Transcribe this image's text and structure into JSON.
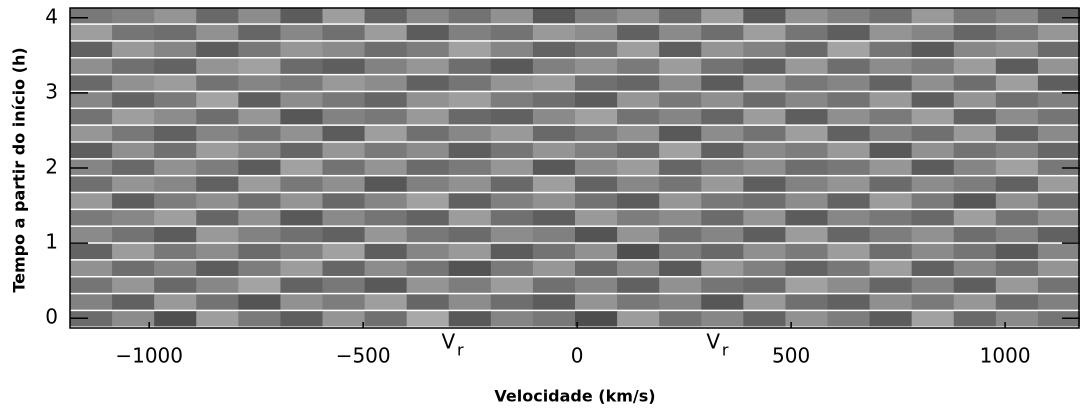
{
  "chart_data": {
    "type": "heatmap",
    "colormap": "gray",
    "xlabel": "Velocidade (km/s)",
    "ylabel": "Tempo a partir do início (h)",
    "xlim": [
      -1185,
      1175
    ],
    "ylim": [
      -0.13,
      4.13
    ],
    "xticks": [
      {
        "value": -1000,
        "label": "−1000"
      },
      {
        "value": -500,
        "label": "−500"
      },
      0,
      500,
      1000
    ],
    "yticks": [
      0,
      1,
      2,
      3,
      4
    ],
    "annotations": [
      {
        "text": "V",
        "sub": "r",
        "x": -287
      },
      {
        "text": "V",
        "sub": "r",
        "x": 332
      }
    ],
    "z": [
      [
        0.42,
        0.55,
        0.31,
        0.62,
        0.48,
        0.37,
        0.58,
        0.44,
        0.66,
        0.35,
        0.52,
        0.47,
        0.3,
        0.61,
        0.45,
        0.53,
        0.39,
        0.57,
        0.49,
        0.36,
        0.63,
        0.41,
        0.54,
        0.46
      ],
      [
        0.51,
        0.38,
        0.6,
        0.45,
        0.33,
        0.57,
        0.49,
        0.62,
        0.4,
        0.55,
        0.43,
        0.36,
        0.58,
        0.47,
        0.52,
        0.34,
        0.6,
        0.44,
        0.38,
        0.56,
        0.48,
        0.59,
        0.42,
        0.5
      ],
      [
        0.46,
        0.59,
        0.41,
        0.53,
        0.64,
        0.39,
        0.47,
        0.35,
        0.58,
        0.49,
        0.61,
        0.44,
        0.52,
        0.38,
        0.57,
        0.46,
        0.42,
        0.63,
        0.55,
        0.4,
        0.51,
        0.37,
        0.6,
        0.45
      ],
      [
        0.57,
        0.43,
        0.52,
        0.36,
        0.49,
        0.61,
        0.4,
        0.55,
        0.46,
        0.33,
        0.48,
        0.59,
        0.41,
        0.54,
        0.35,
        0.6,
        0.5,
        0.39,
        0.47,
        0.62,
        0.38,
        0.53,
        0.44,
        0.58
      ],
      [
        0.39,
        0.61,
        0.47,
        0.55,
        0.42,
        0.5,
        0.63,
        0.37,
        0.52,
        0.6,
        0.36,
        0.45,
        0.57,
        0.31,
        0.49,
        0.41,
        0.56,
        0.48,
        0.61,
        0.43,
        0.54,
        0.46,
        0.35,
        0.52
      ],
      [
        0.54,
        0.45,
        0.36,
        0.6,
        0.51,
        0.44,
        0.38,
        0.59,
        0.47,
        0.42,
        0.55,
        0.5,
        0.33,
        0.58,
        0.44,
        0.52,
        0.37,
        0.61,
        0.4,
        0.49,
        0.57,
        0.43,
        0.51,
        0.38
      ],
      [
        0.48,
        0.53,
        0.62,
        0.4,
        0.57,
        0.35,
        0.54,
        0.46,
        0.39,
        0.61,
        0.44,
        0.37,
        0.6,
        0.49,
        0.55,
        0.42,
        0.58,
        0.36,
        0.53,
        0.47,
        0.41,
        0.62,
        0.45,
        0.56
      ],
      [
        0.6,
        0.37,
        0.49,
        0.56,
        0.44,
        0.58,
        0.41,
        0.52,
        0.63,
        0.38,
        0.5,
        0.57,
        0.45,
        0.36,
        0.59,
        0.47,
        0.43,
        0.55,
        0.39,
        0.61,
        0.48,
        0.34,
        0.57,
        0.43
      ],
      [
        0.44,
        0.58,
        0.53,
        0.38,
        0.61,
        0.47,
        0.56,
        0.34,
        0.5,
        0.57,
        0.41,
        0.62,
        0.39,
        0.53,
        0.46,
        0.6,
        0.37,
        0.51,
        0.58,
        0.42,
        0.55,
        0.49,
        0.38,
        0.61
      ],
      [
        0.52,
        0.41,
        0.57,
        0.49,
        0.36,
        0.63,
        0.45,
        0.58,
        0.42,
        0.48,
        0.59,
        0.35,
        0.54,
        0.61,
        0.4,
        0.5,
        0.56,
        0.43,
        0.47,
        0.59,
        0.36,
        0.52,
        0.63,
        0.47
      ],
      [
        0.37,
        0.56,
        0.44,
        0.61,
        0.53,
        0.4,
        0.59,
        0.48,
        0.55,
        0.37,
        0.46,
        0.58,
        0.5,
        0.42,
        0.63,
        0.38,
        0.54,
        0.49,
        0.6,
        0.35,
        0.57,
        0.45,
        0.51,
        0.4
      ],
      [
        0.59,
        0.47,
        0.38,
        0.52,
        0.46,
        0.57,
        0.36,
        0.62,
        0.44,
        0.53,
        0.6,
        0.41,
        0.48,
        0.57,
        0.35,
        0.55,
        0.45,
        0.62,
        0.38,
        0.51,
        0.44,
        0.6,
        0.39,
        0.54
      ],
      [
        0.45,
        0.62,
        0.55,
        0.43,
        0.59,
        0.34,
        0.51,
        0.47,
        0.6,
        0.41,
        0.38,
        0.54,
        0.63,
        0.45,
        0.52,
        0.4,
        0.61,
        0.37,
        0.56,
        0.48,
        0.62,
        0.39,
        0.55,
        0.46
      ],
      [
        0.53,
        0.39,
        0.48,
        0.64,
        0.37,
        0.55,
        0.47,
        0.4,
        0.57,
        0.62,
        0.49,
        0.43,
        0.36,
        0.59,
        0.47,
        0.56,
        0.42,
        0.53,
        0.45,
        0.6,
        0.37,
        0.58,
        0.44,
        0.5
      ],
      [
        0.41,
        0.57,
        0.61,
        0.45,
        0.52,
        0.48,
        0.6,
        0.55,
        0.38,
        0.46,
        0.58,
        0.61,
        0.44,
        0.4,
        0.55,
        0.36,
        0.59,
        0.47,
        0.52,
        0.39,
        0.56,
        0.43,
        0.62,
        0.37
      ],
      [
        0.56,
        0.44,
        0.39,
        0.58,
        0.63,
        0.42,
        0.37,
        0.51,
        0.59,
        0.43,
        0.35,
        0.5,
        0.57,
        0.48,
        0.61,
        0.45,
        0.38,
        0.6,
        0.43,
        0.55,
        0.49,
        0.61,
        0.36,
        0.58
      ],
      [
        0.38,
        0.6,
        0.52,
        0.36,
        0.47,
        0.59,
        0.54,
        0.43,
        0.49,
        0.63,
        0.52,
        0.39,
        0.46,
        0.62,
        0.37,
        0.58,
        0.51,
        0.41,
        0.64,
        0.46,
        0.35,
        0.53,
        0.57,
        0.42
      ],
      [
        0.62,
        0.46,
        0.43,
        0.57,
        0.4,
        0.53,
        0.44,
        0.61,
        0.36,
        0.5,
        0.45,
        0.6,
        0.55,
        0.38,
        0.54,
        0.43,
        0.62,
        0.46,
        0.37,
        0.58,
        0.52,
        0.4,
        0.48,
        0.59
      ],
      [
        0.47,
        0.51,
        0.58,
        0.41,
        0.55,
        0.36,
        0.62,
        0.39,
        0.53,
        0.45,
        0.57,
        0.34,
        0.49,
        0.56,
        0.42,
        0.61,
        0.35,
        0.57,
        0.5,
        0.44,
        0.6,
        0.47,
        0.53,
        0.39
      ]
    ]
  }
}
